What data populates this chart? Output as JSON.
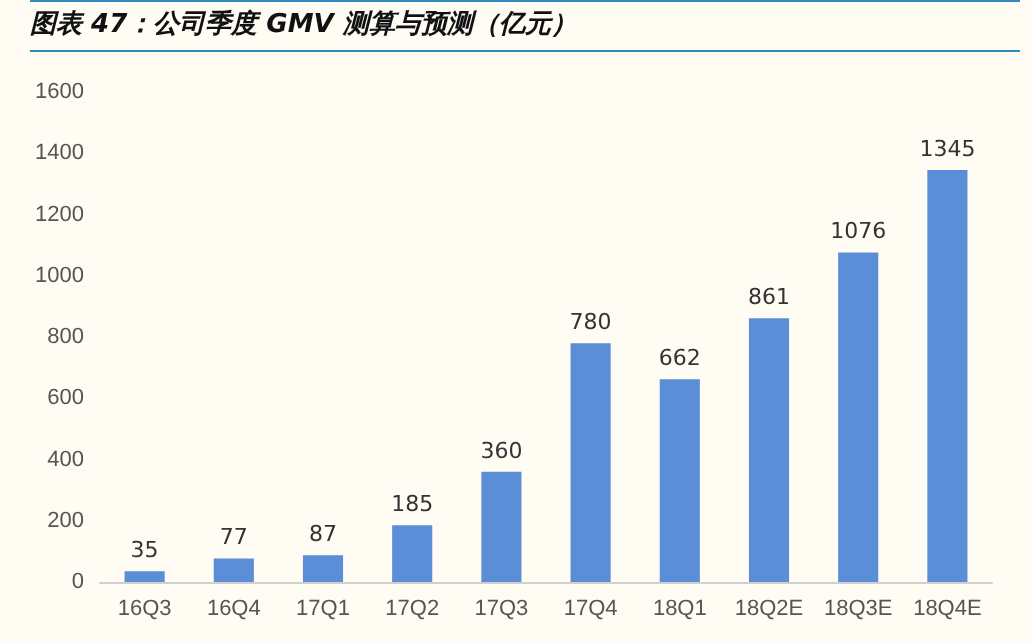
{
  "chart_data": {
    "type": "bar",
    "title": "图表 47：公司季度 GMV 测算与预测（亿元）",
    "categories": [
      "16Q3",
      "16Q4",
      "17Q1",
      "17Q2",
      "17Q3",
      "17Q4",
      "18Q1",
      "18Q2E",
      "18Q3E",
      "18Q4E"
    ],
    "values": [
      35,
      77,
      87,
      185,
      360,
      780,
      662,
      861,
      1076,
      1345
    ],
    "color": "#5b8ed6",
    "ylim": [
      0,
      1600
    ],
    "yticks": [
      0,
      200,
      400,
      600,
      800,
      1000,
      1200,
      1400,
      1600
    ],
    "data_labels": true
  }
}
